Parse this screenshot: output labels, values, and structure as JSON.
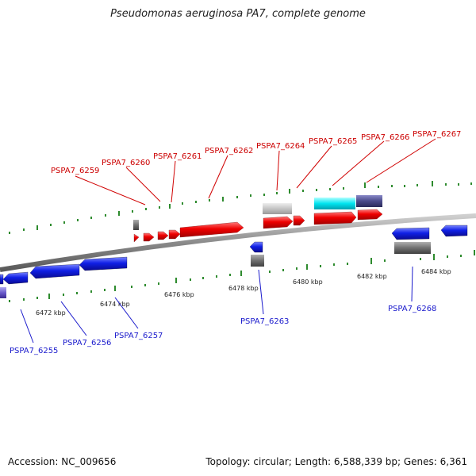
{
  "title": "Pseudomonas aeruginosa PA7, complete genome",
  "footer": {
    "accession": "Accession: NC_009656",
    "summary": "Topology: circular; Length: 6,588,339 bp; Genes: 6,361"
  },
  "colors": {
    "backbone": "#808080",
    "forward_gene": "#e00000",
    "reverse_gene": "#0a14e0",
    "forward_label": "#cc0000",
    "reverse_label": "#1a1acc",
    "tick": "#2e8b2e",
    "rna_grey": "#707070",
    "light_grey": "#bfbfbf",
    "cyan": "#00e0ee",
    "slate": "#4a4a8a"
  },
  "scale_labels": [
    "6472 kbp",
    "6474 kbp",
    "6476 kbp",
    "6478 kbp",
    "6480 kbp",
    "6482 kbp",
    "6484 kbp"
  ],
  "forward_labels": [
    "PSPA7_6259",
    "PSPA7_6260",
    "PSPA7_6261",
    "PSPA7_6262",
    "PSPA7_6264",
    "PSPA7_6265",
    "PSPA7_6266",
    "PSPA7_6267"
  ],
  "reverse_labels": [
    "PSPA7_6255",
    "PSPA7_6256",
    "PSPA7_6257",
    "PSPA7_6263",
    "PSPA7_6268"
  ]
}
